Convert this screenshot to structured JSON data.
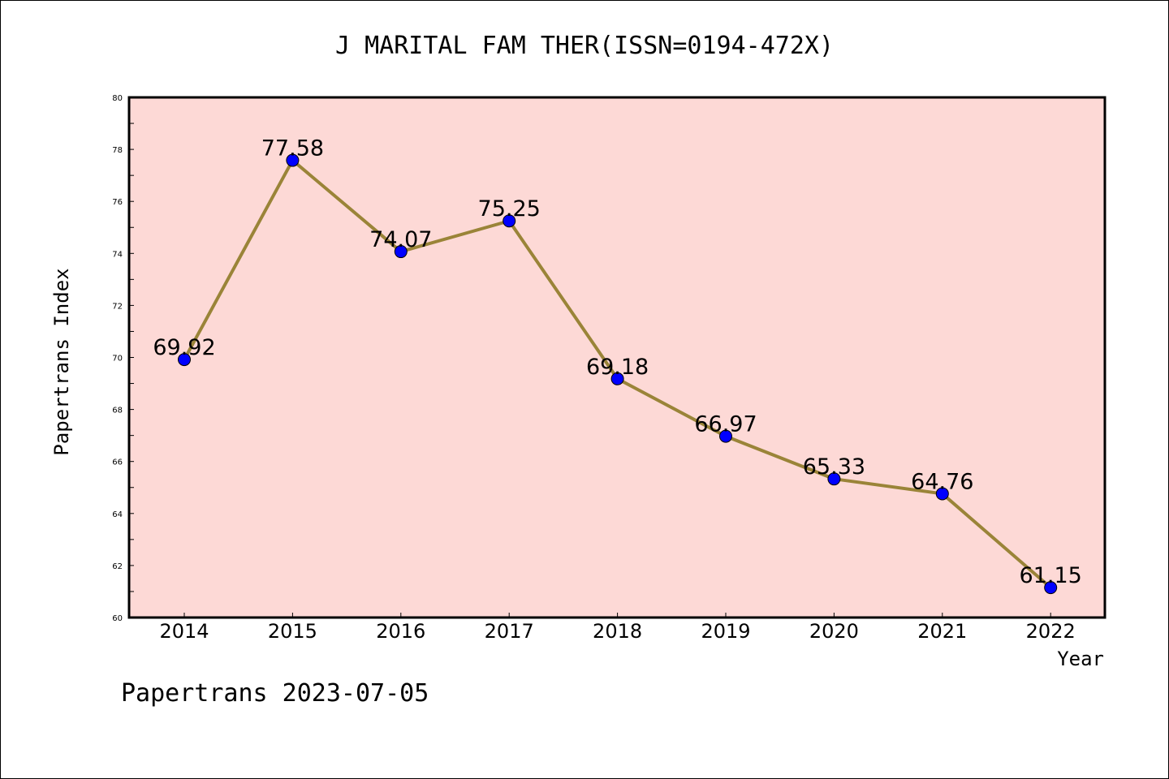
{
  "chart_data": {
    "type": "line",
    "title": "J MARITAL FAM THER(ISSN=0194-472X)",
    "xlabel": "Year",
    "ylabel": "Papertrans Index",
    "categories": [
      "2014",
      "2015",
      "2016",
      "2017",
      "2018",
      "2019",
      "2020",
      "2021",
      "2022"
    ],
    "values": [
      69.92,
      77.58,
      74.07,
      75.25,
      69.18,
      66.97,
      65.33,
      64.76,
      61.15
    ],
    "value_labels": [
      "69.92",
      "77.58",
      "74.07",
      "75.25",
      "69.18",
      "66.97",
      "65.33",
      "64.76",
      "61.15"
    ],
    "ylim": [
      60,
      80
    ],
    "yticks": [
      60,
      62,
      64,
      66,
      68,
      70,
      72,
      74,
      76,
      78,
      80
    ],
    "grid": false,
    "colors": {
      "plot_background": "#fdd9d6",
      "line": "#9a8438",
      "marker": "#0000ff"
    }
  },
  "footer": "Papertrans 2023-07-05"
}
